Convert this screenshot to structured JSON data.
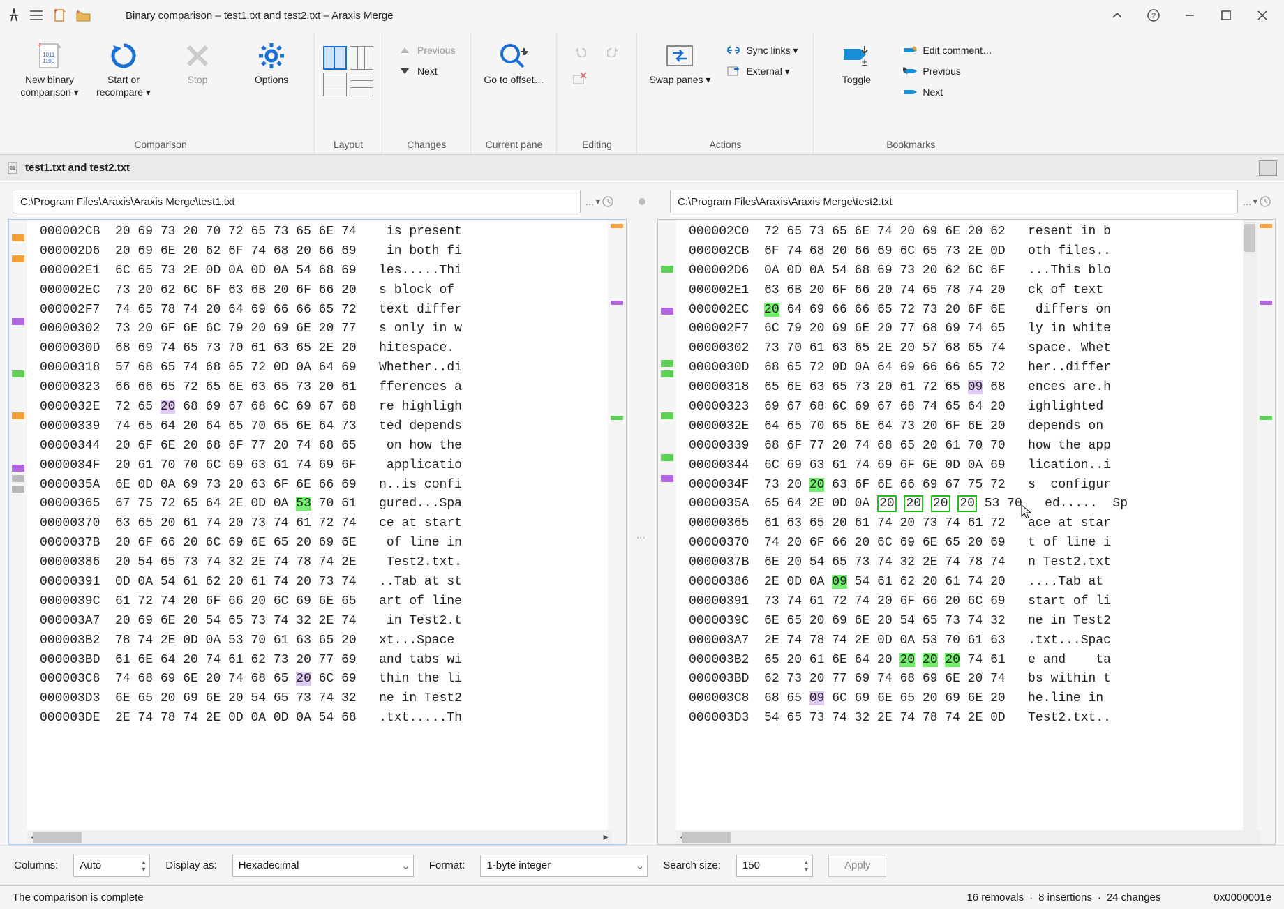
{
  "window": {
    "title": "Binary comparison – test1.txt and test2.txt – Araxis Merge"
  },
  "ribbon": {
    "groups": {
      "comparison": {
        "label": "Comparison",
        "new_binary": "New binary comparison ▾",
        "start": "Start or recompare ▾",
        "stop": "Stop",
        "options": "Options"
      },
      "layout": {
        "label": "Layout"
      },
      "changes": {
        "label": "Changes",
        "previous": "Previous",
        "next": "Next"
      },
      "current_pane": {
        "label": "Current pane",
        "goto": "Go to offset…"
      },
      "editing": {
        "label": "Editing"
      },
      "actions": {
        "label": "Actions",
        "swap": "Swap panes ▾",
        "sync": "Sync links ▾",
        "external": "External ▾"
      },
      "bookmarks": {
        "label": "Bookmarks",
        "toggle": "Toggle",
        "edit_comment": "Edit comment…",
        "previous": "Previous",
        "next": "Next"
      }
    }
  },
  "tab": {
    "label": "test1.txt and test2.txt"
  },
  "paths": {
    "left": "C:\\Program Files\\Araxis\\Araxis Merge\\test1.txt",
    "right": "C:\\Program Files\\Araxis\\Araxis Merge\\test2.txt"
  },
  "hex": {
    "left_rows": [
      {
        "addr": "000002CB",
        "bytes": "20 69 73 20 70 72 65 73 65 6E 74",
        "ascii": " is present"
      },
      {
        "addr": "000002D6",
        "bytes": "20 69 6E 20 62 6F 74 68 20 66 69",
        "ascii": " in both fi"
      },
      {
        "addr": "000002E1",
        "bytes": "6C 65 73 2E 0D 0A 0D 0A 54 68 69",
        "ascii": "les.....Thi"
      },
      {
        "addr": "000002EC",
        "bytes": "73 20 62 6C 6F 63 6B 20 6F 66 20",
        "ascii": "s block of "
      },
      {
        "addr": "000002F7",
        "bytes": "74 65 78 74 20 64 69 66 66 65 72",
        "ascii": "text differ"
      },
      {
        "addr": "00000302",
        "bytes": "73 20 6F 6E 6C 79 20 69 6E 20 77",
        "ascii": "s only in w"
      },
      {
        "addr": "0000030D",
        "bytes": "68 69 74 65 73 70 61 63 65 2E 20",
        "ascii": "hitespace. "
      },
      {
        "addr": "00000318",
        "bytes": "57 68 65 74 68 65 72 0D 0A 64 69",
        "ascii": "Whether..di"
      },
      {
        "addr": "00000323",
        "bytes": "66 66 65 72 65 6E 63 65 73 20 61",
        "ascii": "fferences a"
      },
      {
        "addr": "0000032E",
        "bytes": "72 65 20 68 69 67 68 6C 69 67 68",
        "ascii": "re highligh",
        "hl": [
          {
            "i": 2,
            "t": "purple"
          }
        ]
      },
      {
        "addr": "00000339",
        "bytes": "74 65 64 20 64 65 70 65 6E 64 73",
        "ascii": "ted depends"
      },
      {
        "addr": "00000344",
        "bytes": "20 6F 6E 20 68 6F 77 20 74 68 65",
        "ascii": " on how the"
      },
      {
        "addr": "0000034F",
        "bytes": "20 61 70 70 6C 69 63 61 74 69 6F",
        "ascii": " applicatio"
      },
      {
        "addr": "0000035A",
        "bytes": "6E 0D 0A 69 73 20 63 6F 6E 66 69",
        "ascii": "n..is confi"
      },
      {
        "addr": "00000365",
        "bytes": "67 75 72 65 64 2E 0D 0A 53 70 61",
        "ascii": "gured...Spa",
        "hl": [
          {
            "i": 8,
            "t": "green"
          }
        ]
      },
      {
        "addr": "00000370",
        "bytes": "63 65 20 61 74 20 73 74 61 72 74",
        "ascii": "ce at start"
      },
      {
        "addr": "0000037B",
        "bytes": "20 6F 66 20 6C 69 6E 65 20 69 6E",
        "ascii": " of line in"
      },
      {
        "addr": "00000386",
        "bytes": "20 54 65 73 74 32 2E 74 78 74 2E",
        "ascii": " Test2.txt."
      },
      {
        "addr": "00000391",
        "bytes": "0D 0A 54 61 62 20 61 74 20 73 74",
        "ascii": "..Tab at st"
      },
      {
        "addr": "0000039C",
        "bytes": "61 72 74 20 6F 66 20 6C 69 6E 65",
        "ascii": "art of line"
      },
      {
        "addr": "000003A7",
        "bytes": "20 69 6E 20 54 65 73 74 32 2E 74",
        "ascii": " in Test2.t"
      },
      {
        "addr": "000003B2",
        "bytes": "78 74 2E 0D 0A 53 70 61 63 65 20",
        "ascii": "xt...Space "
      },
      {
        "addr": "000003BD",
        "bytes": "61 6E 64 20 74 61 62 73 20 77 69",
        "ascii": "and tabs wi"
      },
      {
        "addr": "000003C8",
        "bytes": "74 68 69 6E 20 74 68 65 20 6C 69",
        "ascii": "thin the li",
        "hl": [
          {
            "i": 8,
            "t": "purple"
          }
        ]
      },
      {
        "addr": "000003D3",
        "bytes": "6E 65 20 69 6E 20 54 65 73 74 32",
        "ascii": "ne in Test2"
      },
      {
        "addr": "000003DE",
        "bytes": "2E 74 78 74 2E 0D 0A 0D 0A 54 68",
        "ascii": ".txt.....Th"
      }
    ],
    "right_rows": [
      {
        "addr": "000002C0",
        "bytes": "72 65 73 65 6E 74 20 69 6E 20 62",
        "ascii": "resent in b"
      },
      {
        "addr": "000002CB",
        "bytes": "6F 74 68 20 66 69 6C 65 73 2E 0D",
        "ascii": "oth files.."
      },
      {
        "addr": "000002D6",
        "bytes": "0A 0D 0A 54 68 69 73 20 62 6C 6F",
        "ascii": "...This blo"
      },
      {
        "addr": "000002E1",
        "bytes": "63 6B 20 6F 66 20 74 65 78 74 20",
        "ascii": "ck of text "
      },
      {
        "addr": "000002EC",
        "bytes": "20 64 69 66 66 65 72 73 20 6F 6E",
        "ascii": " differs on",
        "hl": [
          {
            "i": 0,
            "t": "green"
          }
        ]
      },
      {
        "addr": "000002F7",
        "bytes": "6C 79 20 69 6E 20 77 68 69 74 65",
        "ascii": "ly in white"
      },
      {
        "addr": "00000302",
        "bytes": "73 70 61 63 65 2E 20 57 68 65 74",
        "ascii": "space. Whet"
      },
      {
        "addr": "0000030D",
        "bytes": "68 65 72 0D 0A 64 69 66 66 65 72",
        "ascii": "her..differ"
      },
      {
        "addr": "00000318",
        "bytes": "65 6E 63 65 73 20 61 72 65 09 68",
        "ascii": "ences are.h",
        "hl": [
          {
            "i": 9,
            "t": "purple"
          }
        ]
      },
      {
        "addr": "00000323",
        "bytes": "69 67 68 6C 69 67 68 74 65 64 20",
        "ascii": "ighlighted "
      },
      {
        "addr": "0000032E",
        "bytes": "64 65 70 65 6E 64 73 20 6F 6E 20",
        "ascii": "depends on "
      },
      {
        "addr": "00000339",
        "bytes": "68 6F 77 20 74 68 65 20 61 70 70",
        "ascii": "how the app"
      },
      {
        "addr": "00000344",
        "bytes": "6C 69 63 61 74 69 6F 6E 0D 0A 69",
        "ascii": "lication..i"
      },
      {
        "addr": "0000034F",
        "bytes": "73 20 20 63 6F 6E 66 69 67 75 72",
        "ascii": "s  configur",
        "hl": [
          {
            "i": 2,
            "t": "green"
          }
        ]
      },
      {
        "addr": "0000035A",
        "bytes": "65 64 2E 0D 0A 20 20 20 20 53 70",
        "ascii": "ed.....  Sp",
        "hl": [
          {
            "i": 5,
            "t": "greenbox"
          },
          {
            "i": 6,
            "t": "greenbox"
          },
          {
            "i": 7,
            "t": "greenbox"
          },
          {
            "i": 8,
            "t": "greenbox"
          }
        ]
      },
      {
        "addr": "00000365",
        "bytes": "61 63 65 20 61 74 20 73 74 61 72",
        "ascii": "ace at star"
      },
      {
        "addr": "00000370",
        "bytes": "74 20 6F 66 20 6C 69 6E 65 20 69",
        "ascii": "t of line i"
      },
      {
        "addr": "0000037B",
        "bytes": "6E 20 54 65 73 74 32 2E 74 78 74",
        "ascii": "n Test2.txt"
      },
      {
        "addr": "00000386",
        "bytes": "2E 0D 0A 09 54 61 62 20 61 74 20",
        "ascii": "....Tab at ",
        "hl": [
          {
            "i": 3,
            "t": "green"
          }
        ]
      },
      {
        "addr": "00000391",
        "bytes": "73 74 61 72 74 20 6F 66 20 6C 69",
        "ascii": "start of li"
      },
      {
        "addr": "0000039C",
        "bytes": "6E 65 20 69 6E 20 54 65 73 74 32",
        "ascii": "ne in Test2"
      },
      {
        "addr": "000003A7",
        "bytes": "2E 74 78 74 2E 0D 0A 53 70 61 63",
        "ascii": ".txt...Spac"
      },
      {
        "addr": "000003B2",
        "bytes": "65 20 61 6E 64 20 20 20 20 74 61",
        "ascii": "e and    ta",
        "hl": [
          {
            "i": 6,
            "t": "green"
          },
          {
            "i": 7,
            "t": "green"
          },
          {
            "i": 8,
            "t": "green"
          }
        ]
      },
      {
        "addr": "000003BD",
        "bytes": "62 73 20 77 69 74 68 69 6E 20 74",
        "ascii": "bs within t"
      },
      {
        "addr": "000003C8",
        "bytes": "68 65 09 6C 69 6E 65 20 69 6E 20",
        "ascii": "he.line in ",
        "hl": [
          {
            "i": 2,
            "t": "purple"
          }
        ]
      },
      {
        "addr": "000003D3",
        "bytes": "54 65 73 74 32 2E 74 78 74 2E 0D",
        "ascii": "Test2.txt.."
      }
    ]
  },
  "bottom": {
    "columns_label": "Columns:",
    "columns_value": "Auto",
    "display_label": "Display as:",
    "display_value": "Hexadecimal",
    "format_label": "Format:",
    "format_value": "1-byte integer",
    "search_label": "Search size:",
    "search_value": "150",
    "apply": "Apply"
  },
  "status": {
    "left": "The comparison is complete",
    "removals": "16 removals",
    "insertions": "8 insertions",
    "changes": "24 changes",
    "offset": "0x0000001e"
  },
  "colors": {
    "orange": "#f4a03a",
    "green": "#5fcf56",
    "purple": "#b266e0",
    "grey": "#b8b8b8",
    "blue_accent": "#1a6fd6",
    "red_line": "#c82020"
  }
}
